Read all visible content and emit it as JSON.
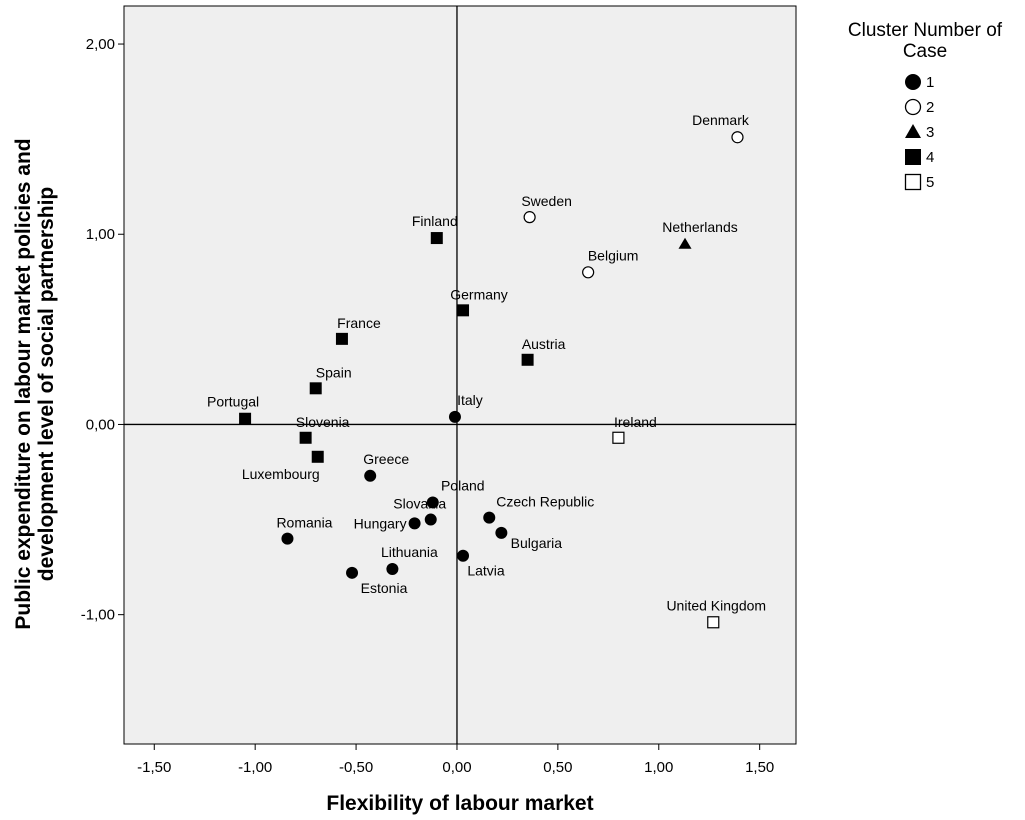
{
  "chart_data": {
    "type": "scatter",
    "title": "",
    "xlabel": "Flexibility of labour market",
    "ylabel_lines": [
      "Public expenditure on labour market policies and",
      "development level of social partnership"
    ],
    "xlim": [
      -1.65,
      1.68
    ],
    "ylim": [
      -1.68,
      2.2
    ],
    "xticks": [
      -1.5,
      -1.0,
      -0.5,
      0.0,
      0.5,
      1.0,
      1.5
    ],
    "xtick_labels": [
      "-1,50",
      "-1,00",
      "-0,50",
      "0,00",
      "0,50",
      "1,00",
      "1,50"
    ],
    "yticks": [
      2.0,
      1.0,
      0.0,
      -1.0
    ],
    "ytick_labels": [
      "2,00",
      "1,00",
      "0,00",
      "-1,00"
    ],
    "reference_lines": {
      "x": 0,
      "y": 0
    },
    "plot_background": "#efefef",
    "grid": false,
    "legend": {
      "title_lines": [
        "Cluster Number of",
        "Case"
      ],
      "position": "top-right outside",
      "entries": [
        {
          "label": "1",
          "marker": "circle-filled"
        },
        {
          "label": "2",
          "marker": "circle-open"
        },
        {
          "label": "3",
          "marker": "triangle-filled"
        },
        {
          "label": "4",
          "marker": "square-filled"
        },
        {
          "label": "5",
          "marker": "square-open"
        }
      ]
    },
    "points": [
      {
        "country": "Denmark",
        "cluster": 2,
        "x": 1.39,
        "y": 1.51
      },
      {
        "country": "Sweden",
        "cluster": 2,
        "x": 0.36,
        "y": 1.09
      },
      {
        "country": "Belgium",
        "cluster": 2,
        "x": 0.65,
        "y": 0.8
      },
      {
        "country": "Netherlands",
        "cluster": 3,
        "x": 1.13,
        "y": 0.95
      },
      {
        "country": "Finland",
        "cluster": 4,
        "x": -0.1,
        "y": 0.98
      },
      {
        "country": "Germany",
        "cluster": 4,
        "x": 0.03,
        "y": 0.6
      },
      {
        "country": "France",
        "cluster": 4,
        "x": -0.57,
        "y": 0.45
      },
      {
        "country": "Austria",
        "cluster": 4,
        "x": 0.35,
        "y": 0.34
      },
      {
        "country": "Spain",
        "cluster": 4,
        "x": -0.7,
        "y": 0.19
      },
      {
        "country": "Portugal",
        "cluster": 4,
        "x": -1.05,
        "y": 0.03
      },
      {
        "country": "Slovenia",
        "cluster": 4,
        "x": -0.75,
        "y": -0.07
      },
      {
        "country": "Luxembourg",
        "cluster": 4,
        "x": -0.69,
        "y": -0.17
      },
      {
        "country": "Italy",
        "cluster": 1,
        "x": -0.01,
        "y": 0.04
      },
      {
        "country": "Greece",
        "cluster": 1,
        "x": -0.43,
        "y": -0.27
      },
      {
        "country": "Poland",
        "cluster": 1,
        "x": -0.12,
        "y": -0.41
      },
      {
        "country": "Slovakia",
        "cluster": 1,
        "x": -0.13,
        "y": -0.5
      },
      {
        "country": "Hungary",
        "cluster": 1,
        "x": -0.21,
        "y": -0.52
      },
      {
        "country": "Czech Republic",
        "cluster": 1,
        "x": 0.16,
        "y": -0.49
      },
      {
        "country": "Bulgaria",
        "cluster": 1,
        "x": 0.22,
        "y": -0.57
      },
      {
        "country": "Romania",
        "cluster": 1,
        "x": -0.84,
        "y": -0.6
      },
      {
        "country": "Lithuania",
        "cluster": 1,
        "x": -0.32,
        "y": -0.76
      },
      {
        "country": "Latvia",
        "cluster": 1,
        "x": 0.03,
        "y": -0.69
      },
      {
        "country": "Estonia",
        "cluster": 1,
        "x": -0.52,
        "y": -0.78
      },
      {
        "country": "Ireland",
        "cluster": 5,
        "x": 0.8,
        "y": -0.07
      },
      {
        "country": "United Kingdom",
        "cluster": 5,
        "x": 1.27,
        "y": -1.04
      }
    ]
  }
}
